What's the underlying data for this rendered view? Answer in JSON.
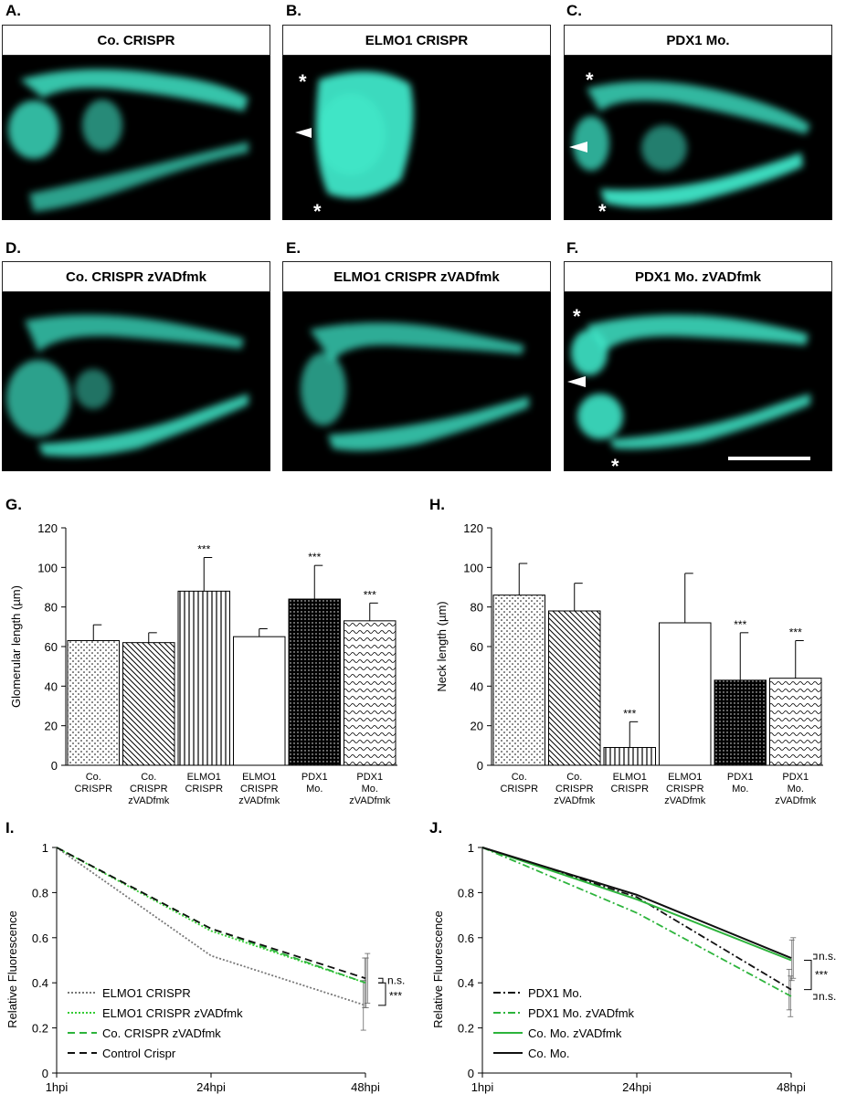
{
  "panels": [
    {
      "letter": "A.",
      "title": "Co. CRISPR"
    },
    {
      "letter": "B.",
      "title": "ELMO1 CRISPR"
    },
    {
      "letter": "C.",
      "title": "PDX1 Mo."
    },
    {
      "letter": "D.",
      "title": "Co. CRISPR zVADfmk"
    },
    {
      "letter": "E.",
      "title": "ELMO1 CRISPR zVADfmk"
    },
    {
      "letter": "F.",
      "title": "PDX1 Mo. zVADfmk"
    }
  ],
  "image_marks": {
    "asterisk": "*"
  },
  "colors": {
    "fluorescence": "#3fe6c8",
    "background": "#000000",
    "green_line": "#2db43c"
  },
  "chart_data": [
    {
      "letter": "G.",
      "type": "bar",
      "ylabel": "Glomerular  length  (µm)",
      "ylim": [
        0,
        120
      ],
      "yticks": [
        "0",
        "20",
        "40",
        "60",
        "80",
        "100",
        "120"
      ],
      "categories": [
        [
          "Co.",
          "CRISPR"
        ],
        [
          "Co.",
          "CRISPR",
          "zVADfmk"
        ],
        [
          "ELMO1",
          "CRISPR"
        ],
        [
          "ELMO1",
          "CRISPR",
          "zVADfmk"
        ],
        [
          "PDX1",
          "Mo."
        ],
        [
          "PDX1",
          "Mo.",
          "zVADfmk"
        ]
      ],
      "values": [
        63,
        62,
        88,
        65,
        84,
        73
      ],
      "errors": [
        8,
        5,
        17,
        4,
        17,
        9
      ],
      "significance": [
        "",
        "",
        "***",
        "",
        "***",
        "***"
      ],
      "patterns": [
        "dots",
        "diag",
        "vert",
        "none",
        "dense",
        "wave"
      ]
    },
    {
      "letter": "H.",
      "type": "bar",
      "ylabel": "Neck length (µm)",
      "ylim": [
        0,
        120
      ],
      "yticks": [
        "0",
        "20",
        "40",
        "60",
        "80",
        "100",
        "120"
      ],
      "categories": [
        [
          "Co.",
          "CRISPR"
        ],
        [
          "Co.",
          "CRISPR",
          "zVADfmk"
        ],
        [
          "ELMO1",
          "CRISPR"
        ],
        [
          "ELMO1",
          "CRISPR",
          "zVADfmk"
        ],
        [
          "PDX1",
          "Mo."
        ],
        [
          "PDX1",
          "Mo.",
          "zVADfmk"
        ]
      ],
      "values": [
        86,
        78,
        9,
        72,
        43,
        44
      ],
      "errors": [
        16,
        14,
        13,
        25,
        24,
        19
      ],
      "significance": [
        "",
        "",
        "***",
        "",
        "***",
        "***"
      ],
      "patterns": [
        "dots",
        "diag",
        "vert",
        "none",
        "dense",
        "wave"
      ]
    },
    {
      "letter": "I.",
      "type": "line",
      "ylabel": "Relative  Fluorescence",
      "ylim": [
        0,
        1
      ],
      "yticks": [
        "0",
        "0.2",
        "0.4",
        "0.6",
        "0.8",
        "1"
      ],
      "x": [
        "1hpi",
        "24hpi",
        "48hpi"
      ],
      "series": [
        {
          "name": "ELMO1 CRISPR",
          "values": [
            1,
            0.52,
            0.3
          ],
          "color": "#777777",
          "dash": "2,2"
        },
        {
          "name": "ELMO1 CRISPR zVADfmk",
          "values": [
            1,
            0.63,
            0.4
          ],
          "color": "#33cc33",
          "dash": "2,2"
        },
        {
          "name": "Co. CRISPR zVADfmk",
          "values": [
            1,
            0.64,
            0.4
          ],
          "color": "#2db43c",
          "dash": "8,5"
        },
        {
          "name": "Control Crispr",
          "values": [
            1,
            0.64,
            0.42
          ],
          "color": "#111111",
          "dash": "8,5"
        }
      ],
      "error_48": [
        0.11,
        0.11,
        0.11,
        0.11
      ],
      "annotations": [
        "n.s.",
        "***"
      ]
    },
    {
      "letter": "J.",
      "type": "line",
      "ylabel": "Relative  Fluorescence",
      "ylim": [
        0,
        1
      ],
      "yticks": [
        "0",
        "0.2",
        "0.4",
        "0.6",
        "0.8",
        "1"
      ],
      "x": [
        "1hpi",
        "24hpi",
        "48hpi"
      ],
      "series": [
        {
          "name": "PDX1 Mo.",
          "values": [
            1,
            0.78,
            0.37
          ],
          "color": "#111111",
          "dash": "8,3,2,3"
        },
        {
          "name": "PDX1 Mo. zVADfmk",
          "values": [
            1,
            0.71,
            0.34
          ],
          "color": "#2db43c",
          "dash": "8,3,2,3"
        },
        {
          "name": "Co. Mo. zVADfmk",
          "values": [
            1,
            0.77,
            0.5
          ],
          "color": "#2db43c",
          "dash": ""
        },
        {
          "name": "Co. Mo.",
          "values": [
            1,
            0.79,
            0.51
          ],
          "color": "#111111",
          "dash": ""
        }
      ],
      "error_48": [
        0.09,
        0.09,
        0.09,
        0.09
      ],
      "annotations": [
        "n.s.",
        "***",
        "n.s."
      ]
    }
  ]
}
